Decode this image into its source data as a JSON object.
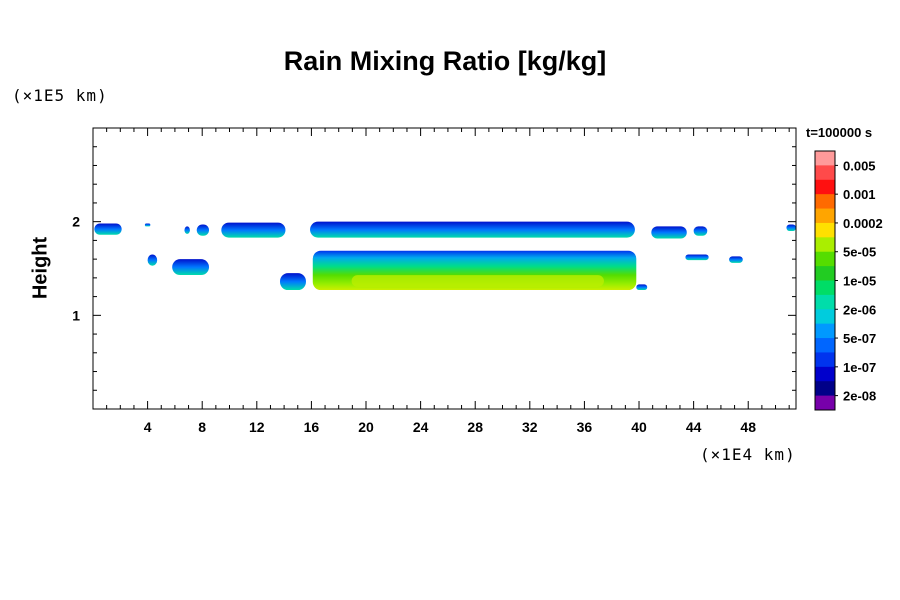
{
  "chart_data": {
    "type": "heatmap",
    "title": "Rain Mixing Ratio [kg/kg]",
    "ylabel": "Height",
    "y_unit": "(×1E5 km)",
    "x_unit": "(×1E4 km)",
    "time_label": "t=100000 s",
    "xlim": [
      0,
      51.5
    ],
    "ylim": [
      0,
      3
    ],
    "x_ticks": [
      4,
      8,
      12,
      16,
      20,
      24,
      28,
      32,
      36,
      40,
      44,
      48
    ],
    "y_ticks": [
      1,
      2
    ],
    "colorbar_labels": [
      "0.005",
      "0.001",
      "0.0002",
      "5e-05",
      "1e-05",
      "2e-06",
      "5e-07",
      "1e-07",
      "2e-08"
    ],
    "colorbar_colors": [
      "#ff9a9a",
      "#ff4a4a",
      "#ff1010",
      "#ff6a00",
      "#ffa500",
      "#ffe000",
      "#aaee00",
      "#55dd00",
      "#22cc22",
      "#00dd66",
      "#00ddaa",
      "#00ccdd",
      "#0099ff",
      "#0066ff",
      "#0033ee",
      "#0000cc",
      "#000088",
      "#7700aa"
    ],
    "features": [
      {
        "x0": 0.1,
        "x1": 2.1,
        "y0": 1.86,
        "y1": 1.98,
        "level": 0.2
      },
      {
        "x0": 3.8,
        "x1": 4.2,
        "y0": 1.95,
        "y1": 1.98,
        "level": 0.05
      },
      {
        "x0": 4.0,
        "x1": 4.7,
        "y0": 1.53,
        "y1": 1.65,
        "level": 0.2
      },
      {
        "x0": 5.8,
        "x1": 8.5,
        "y0": 1.43,
        "y1": 1.6,
        "level": 0.25
      },
      {
        "x0": 6.7,
        "x1": 7.1,
        "y0": 1.87,
        "y1": 1.95,
        "level": 0.1
      },
      {
        "x0": 7.6,
        "x1": 8.5,
        "y0": 1.85,
        "y1": 1.97,
        "level": 0.1
      },
      {
        "x0": 9.4,
        "x1": 14.1,
        "y0": 1.83,
        "y1": 1.99,
        "level": 0.35
      },
      {
        "x0": 15.9,
        "x1": 39.7,
        "y0": 1.83,
        "y1": 2.0,
        "level": 0.4
      },
      {
        "x0": 13.7,
        "x1": 15.6,
        "y0": 1.27,
        "y1": 1.45,
        "level": 0.3
      },
      {
        "x0": 16.1,
        "x1": 39.8,
        "y0": 1.27,
        "y1": 1.69,
        "level": 0.85
      },
      {
        "x0": 39.8,
        "x1": 40.6,
        "y0": 1.27,
        "y1": 1.33,
        "level": 0.35
      },
      {
        "x0": 40.9,
        "x1": 43.5,
        "y0": 1.82,
        "y1": 1.95,
        "level": 0.1
      },
      {
        "x0": 44.0,
        "x1": 45.0,
        "y0": 1.85,
        "y1": 1.95,
        "level": 0.1
      },
      {
        "x0": 43.4,
        "x1": 45.1,
        "y0": 1.59,
        "y1": 1.65,
        "level": 0.1
      },
      {
        "x0": 46.6,
        "x1": 47.6,
        "y0": 1.56,
        "y1": 1.63,
        "level": 0.1
      },
      {
        "x0": 50.8,
        "x1": 51.5,
        "y0": 1.9,
        "y1": 1.97,
        "level": 0.05
      }
    ]
  }
}
